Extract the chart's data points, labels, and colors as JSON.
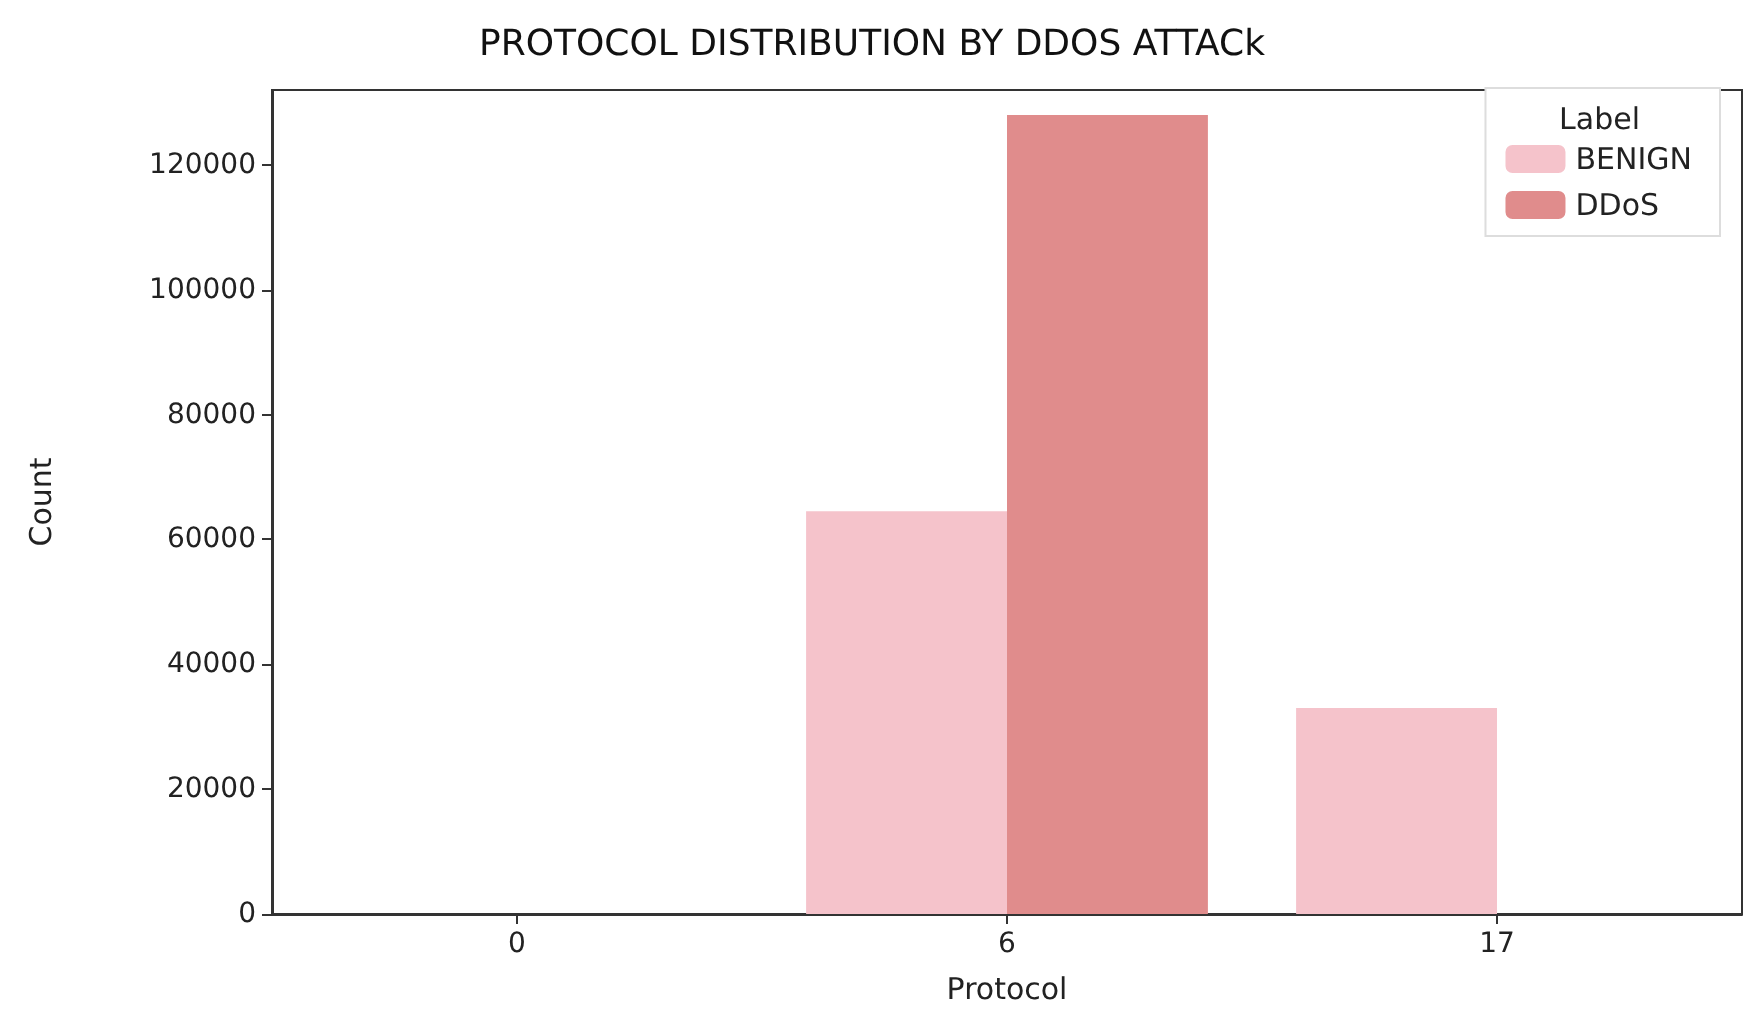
{
  "chart_data": {
    "type": "bar",
    "title": "PROTOCOL DISTRIBUTION BY DDOS ATTACk",
    "xlabel": "Protocol",
    "ylabel": "Count",
    "legend_title": "Label",
    "categories": [
      "0",
      "6",
      "17"
    ],
    "series": [
      {
        "name": "BENIGN",
        "color": "#f5c3cb",
        "values": [
          0,
          64500,
          33000
        ]
      },
      {
        "name": "DDoS",
        "color": "#e08c8c",
        "values": [
          0,
          128000,
          0
        ]
      }
    ],
    "ylim": [
      0,
      132000
    ],
    "yticks": [
      0,
      20000,
      40000,
      60000,
      80000,
      100000,
      120000
    ],
    "grid": false,
    "legend": "top right"
  }
}
